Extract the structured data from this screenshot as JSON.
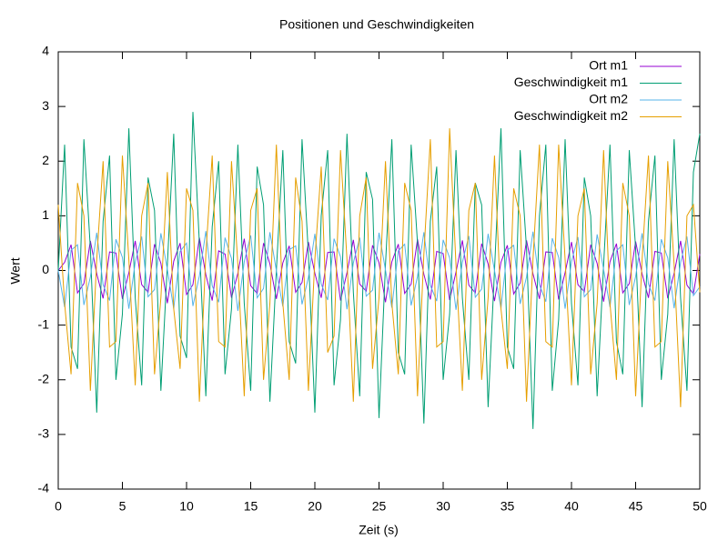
{
  "chart_data": {
    "type": "line",
    "title": "Positionen und Geschwindigkeiten",
    "xlabel": "Zeit (s)",
    "ylabel": "Wert",
    "xlim": [
      0,
      50
    ],
    "ylim": [
      -4,
      4
    ],
    "xticks": [
      0,
      5,
      10,
      15,
      20,
      25,
      30,
      35,
      40,
      45,
      50
    ],
    "yticks": [
      -4,
      -3,
      -2,
      -1,
      0,
      1,
      2,
      3,
      4
    ],
    "legend": "top-right",
    "x": [
      0,
      0.5,
      1,
      1.5,
      2,
      2.5,
      3,
      3.5,
      4,
      4.5,
      5,
      5.5,
      6,
      6.5,
      7,
      7.5,
      8,
      8.5,
      9,
      9.5,
      10,
      10.5,
      11,
      11.5,
      12,
      12.5,
      13,
      13.5,
      14,
      14.5,
      15,
      15.5,
      16,
      16.5,
      17,
      17.5,
      18,
      18.5,
      19,
      19.5,
      20,
      20.5,
      21,
      21.5,
      22,
      22.5,
      23,
      23.5,
      24,
      24.5,
      25,
      25.5,
      26,
      26.5,
      27,
      27.5,
      28,
      28.5,
      29,
      29.5,
      30,
      30.5,
      31,
      31.5,
      32,
      32.5,
      33,
      33.5,
      34,
      34.5,
      35,
      35.5,
      36,
      36.5,
      37,
      37.5,
      38,
      38.5,
      39,
      39.5,
      40,
      40.5,
      41,
      41.5,
      42,
      42.5,
      43,
      43.5,
      44,
      44.5,
      45,
      45.5,
      46,
      46.5,
      47,
      47.5,
      48,
      48.5,
      49,
      49.5,
      50
    ],
    "series": [
      {
        "name": "Ort m1",
        "color": "#9400d3",
        "values": [
          0.0,
          0.15,
          0.47,
          -0.41,
          -0.24,
          0.54,
          -0.06,
          -0.51,
          0.34,
          0.32,
          -0.52,
          -0.04,
          0.54,
          -0.26,
          -0.4,
          0.48,
          0.13,
          -0.6,
          0.17,
          0.5,
          -0.44,
          -0.26,
          0.6,
          -0.08,
          -0.55,
          0.36,
          0.3,
          -0.5,
          -0.05,
          0.58,
          -0.28,
          -0.42,
          0.5,
          0.12,
          -0.52,
          0.14,
          0.45,
          -0.4,
          -0.22,
          0.52,
          -0.05,
          -0.5,
          0.33,
          0.34,
          -0.55,
          -0.04,
          0.56,
          -0.25,
          -0.38,
          0.46,
          0.14,
          -0.58,
          0.16,
          0.48,
          -0.42,
          -0.25,
          0.57,
          -0.07,
          -0.53,
          0.35,
          0.31,
          -0.54,
          -0.03,
          0.55,
          -0.27,
          -0.41,
          0.49,
          0.12,
          -0.56,
          0.15,
          0.46,
          -0.43,
          -0.23,
          0.55,
          -0.06,
          -0.52,
          0.34,
          0.33,
          -0.53,
          -0.04,
          0.52,
          -0.26,
          -0.39,
          0.47,
          0.13,
          -0.57,
          0.16,
          0.49,
          -0.41,
          -0.24,
          0.53,
          -0.06,
          -0.5,
          0.35,
          0.32,
          -0.51,
          -0.05,
          0.54,
          -0.27,
          -0.43,
          0.3
        ]
      },
      {
        "name": "Geschwindigkeit m1",
        "color": "#009e73",
        "values": [
          0,
          2.3,
          -1.4,
          -1.8,
          2.4,
          0.4,
          -2.6,
          0.9,
          2.1,
          -2.0,
          -0.8,
          2.6,
          -0.5,
          -2.1,
          1.7,
          1.1,
          -2.2,
          0.1,
          2.5,
          -1.2,
          -1.6,
          2.9,
          0.5,
          -2.3,
          0.8,
          2.0,
          -1.9,
          -0.7,
          2.3,
          -0.6,
          -2.2,
          1.9,
          1.2,
          -2.4,
          0.0,
          2.2,
          -1.3,
          -1.7,
          2.4,
          0.3,
          -2.6,
          1.0,
          2.2,
          -2.1,
          -0.9,
          2.5,
          -0.4,
          -2.3,
          1.8,
          1.3,
          -2.7,
          0.1,
          2.4,
          -1.5,
          -1.9,
          2.3,
          0.5,
          -2.8,
          0.9,
          1.9,
          -2.0,
          -0.8,
          2.2,
          -0.5,
          -2.0,
          1.6,
          1.2,
          -2.5,
          0.0,
          2.6,
          -1.4,
          -1.8,
          2.2,
          0.4,
          -2.9,
          1.0,
          2.3,
          -2.2,
          -0.9,
          2.4,
          -0.6,
          -2.1,
          1.7,
          1.0,
          -2.3,
          0.1,
          2.3,
          -1.3,
          -1.9,
          2.2,
          0.4,
          -2.5,
          0.9,
          2.1,
          -2.0,
          -0.8,
          2.4,
          -0.5,
          -2.2,
          1.8,
          2.5
        ]
      },
      {
        "name": "Ort m2",
        "color": "#56b4e9",
        "values": [
          0,
          -0.67,
          0.37,
          0.47,
          -0.63,
          -0.12,
          0.69,
          -0.26,
          -0.55,
          0.57,
          0.24,
          -0.7,
          0.15,
          0.62,
          -0.48,
          -0.35,
          0.68,
          0.02,
          -0.7,
          0.35,
          0.5,
          -0.65,
          -0.1,
          0.72,
          -0.28,
          -0.58,
          0.6,
          0.22,
          -0.74,
          0.16,
          0.64,
          -0.5,
          -0.33,
          0.7,
          0.0,
          -0.66,
          0.38,
          0.45,
          -0.62,
          -0.13,
          0.67,
          -0.25,
          -0.54,
          0.58,
          0.25,
          -0.71,
          0.14,
          0.6,
          -0.47,
          -0.36,
          0.69,
          0.01,
          -0.68,
          0.36,
          0.48,
          -0.64,
          -0.11,
          0.7,
          -0.27,
          -0.56,
          0.56,
          0.23,
          -0.72,
          0.15,
          0.63,
          -0.49,
          -0.34,
          0.67,
          0.0,
          -0.69,
          0.37,
          0.46,
          -0.61,
          -0.12,
          0.71,
          -0.26,
          -0.57,
          0.59,
          0.24,
          -0.7,
          0.16,
          0.61,
          -0.48,
          -0.35,
          0.66,
          0.02,
          -0.67,
          0.36,
          0.47,
          -0.63,
          -0.11,
          0.68,
          -0.25,
          -0.55,
          0.57,
          0.23,
          -0.69,
          0.15,
          0.62,
          -0.46,
          -0.3
        ]
      },
      {
        "name": "Geschwindigkeit m2",
        "color": "#e69f00",
        "values": [
          1.2,
          -0.6,
          -1.9,
          1.6,
          1.0,
          -2.2,
          0.2,
          2.0,
          -1.4,
          -1.3,
          2.1,
          0.2,
          -2.1,
          1.0,
          1.6,
          -1.9,
          -0.5,
          1.8,
          -0.7,
          -1.8,
          1.5,
          1.1,
          -2.4,
          0.3,
          2.1,
          -1.3,
          -1.4,
          2.0,
          0.1,
          -2.3,
          1.1,
          1.5,
          -2.0,
          -0.6,
          2.3,
          -0.6,
          -2.0,
          1.7,
          0.9,
          -2.2,
          0.2,
          1.9,
          -1.5,
          -1.2,
          2.2,
          0.2,
          -2.4,
          1.0,
          1.7,
          -1.8,
          -0.5,
          2.0,
          -0.6,
          -1.9,
          1.6,
          1.1,
          -2.3,
          0.3,
          2.4,
          -1.4,
          -1.3,
          2.6,
          0.1,
          -2.2,
          1.1,
          1.6,
          -2.0,
          -0.5,
          2.1,
          -0.7,
          -1.8,
          1.5,
          1.0,
          -2.4,
          0.2,
          2.3,
          -1.3,
          -1.4,
          2.3,
          0.2,
          -2.1,
          1.0,
          1.5,
          -1.9,
          -0.6,
          2.2,
          -0.6,
          -2.0,
          1.6,
          1.0,
          -2.3,
          0.2,
          2.1,
          -1.4,
          -1.3,
          2.0,
          0.1,
          -2.5,
          1.0,
          1.2,
          -0.4
        ]
      }
    ]
  }
}
